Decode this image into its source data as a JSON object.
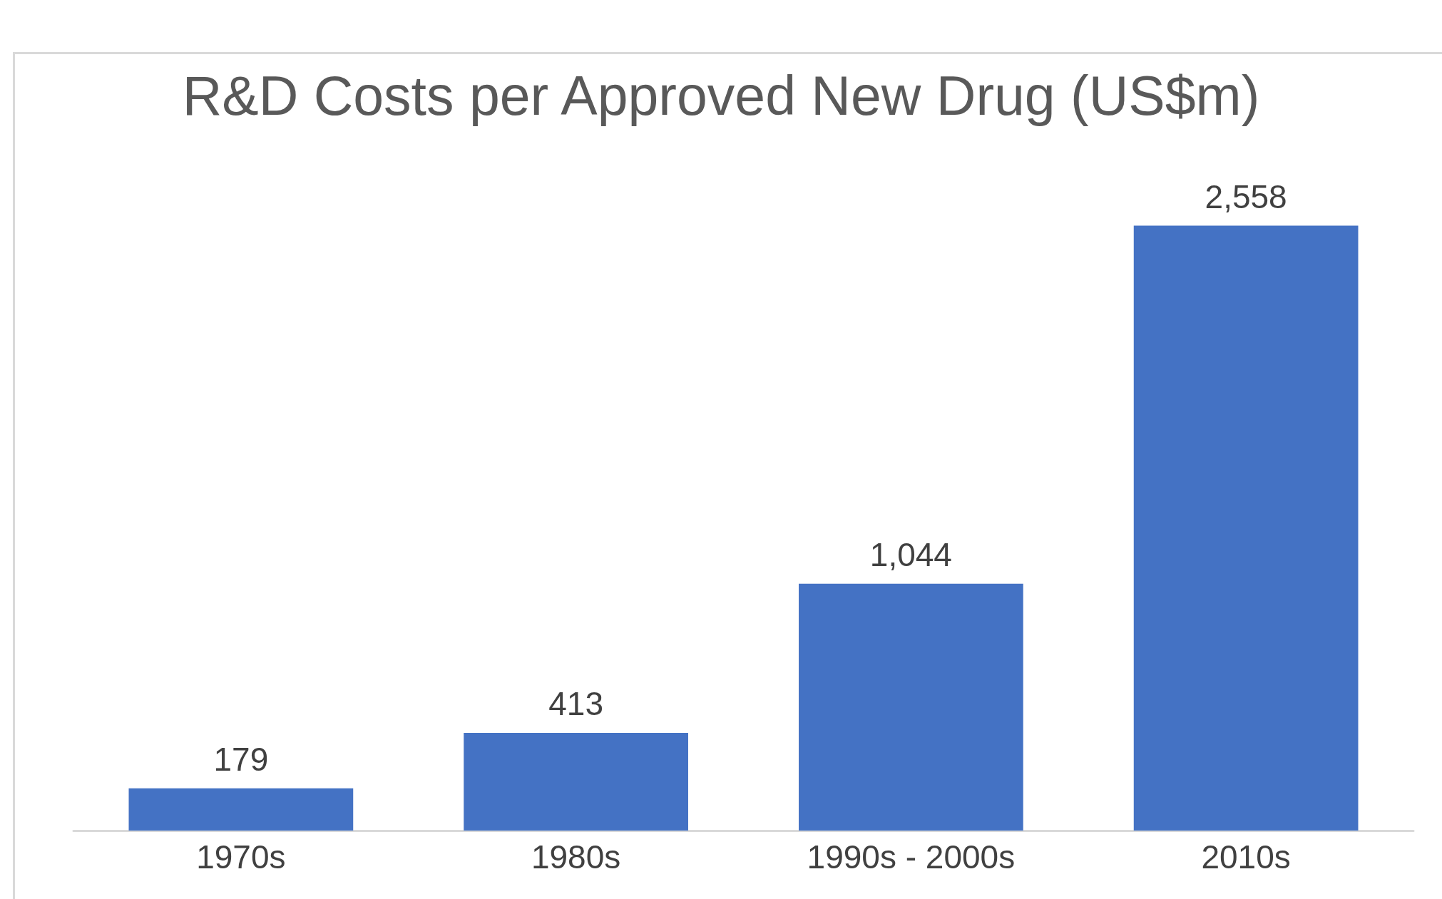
{
  "chart_data": {
    "type": "bar",
    "title": "R&D Costs per Approved New Drug (US$m)",
    "categories": [
      "1970s",
      "1980s",
      "1990s - 2000s",
      "2010s"
    ],
    "values": [
      179,
      413,
      1044,
      2558
    ],
    "value_labels": [
      "179",
      "413",
      "1,044",
      "2,558"
    ],
    "color": "#4472c4"
  }
}
